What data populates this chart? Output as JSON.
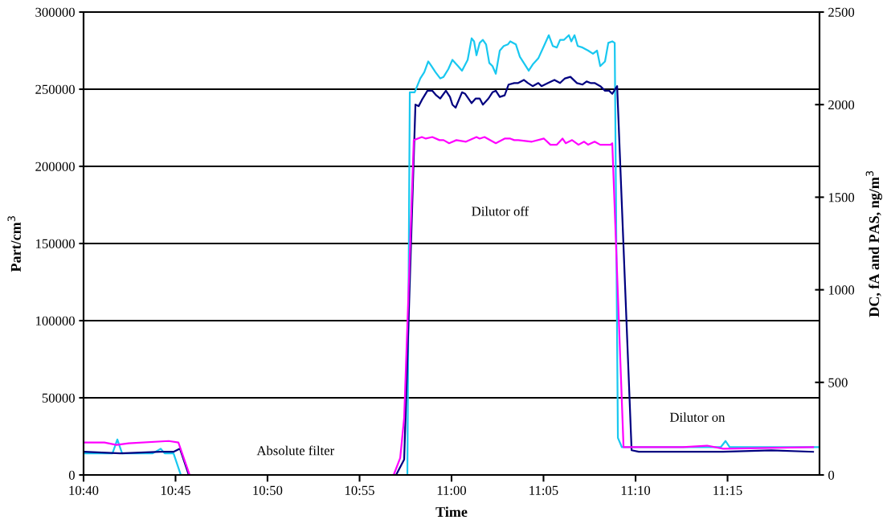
{
  "chart_data": {
    "type": "line",
    "xlabel": "Time",
    "ylabel": "Part/cm$^{3}$",
    "y2label": "DC, fA and PAS, ng/m$^{3}$",
    "xlim": [
      10.6667,
      11.3333
    ],
    "xticks": [
      {
        "value": 10.6667,
        "label": "10:40"
      },
      {
        "value": 10.75,
        "label": "10:45"
      },
      {
        "value": 10.8333,
        "label": "10:50"
      },
      {
        "value": 10.9167,
        "label": "10:55"
      },
      {
        "value": 11.0,
        "label": "11:00"
      },
      {
        "value": 11.0833,
        "label": "11:05"
      },
      {
        "value": 11.1667,
        "label": "11:10"
      },
      {
        "value": 11.25,
        "label": "11:15"
      }
    ],
    "ylim": [
      0,
      300000
    ],
    "yticks": [
      0,
      50000,
      100000,
      150000,
      200000,
      250000,
      300000
    ],
    "y2lim": [
      0,
      2500
    ],
    "y2ticks": [
      0,
      500,
      1000,
      1500,
      2000,
      2500
    ],
    "grid": "y",
    "marker": "none",
    "line_style": "solid",
    "annotations": [
      "Absolute filter",
      "Dilutor off",
      "Dilutor on"
    ],
    "series": [
      {
        "color": "#19c8f0",
        "x": [
          10.6667,
          10.6856,
          10.6929,
          10.6973,
          10.7016,
          10.7147,
          10.7293,
          10.7366,
          10.7402,
          10.7482,
          10.7548,
          10.96,
          10.9622,
          10.9666,
          10.9717,
          10.9753,
          10.9789,
          10.9818,
          10.9855,
          10.9898,
          10.9928,
          10.9971,
          11.0008,
          11.0059,
          11.0095,
          11.0146,
          11.0182,
          11.0204,
          11.0226,
          11.0255,
          11.0284,
          11.0313,
          11.0342,
          11.0371,
          11.0401,
          11.0437,
          11.0473,
          11.051,
          11.0532,
          11.0583,
          11.0619,
          11.0655,
          11.0699,
          11.0735,
          11.0786,
          11.0837,
          11.0881,
          11.0917,
          11.0954,
          11.0983,
          11.1019,
          11.1063,
          11.1085,
          11.1114,
          11.1143,
          11.1187,
          11.1238,
          11.1281,
          11.1318,
          11.1347,
          11.139,
          11.142,
          11.1456,
          11.1478,
          11.1507,
          11.1543,
          11.2096,
          11.2438,
          11.2482,
          11.2519,
          11.3333
        ],
        "values": [
          14000,
          14000,
          14000,
          23000,
          14000,
          14000,
          14000,
          17000,
          14000,
          14000,
          0,
          0,
          248000,
          248000,
          257000,
          261000,
          268000,
          265000,
          261000,
          257000,
          258000,
          263000,
          269000,
          265000,
          262000,
          269000,
          283000,
          281000,
          272000,
          280000,
          282000,
          279000,
          267000,
          265000,
          260000,
          275000,
          278000,
          279000,
          281000,
          279000,
          271000,
          267000,
          262000,
          266000,
          270000,
          278000,
          285000,
          278000,
          277000,
          282000,
          282000,
          285000,
          281000,
          285000,
          278000,
          277000,
          275000,
          273000,
          275000,
          265000,
          268000,
          280000,
          281000,
          280000,
          24000,
          18000,
          18000,
          18000,
          22000,
          18000,
          18000
        ]
      },
      {
        "color": "#000080",
        "x": [
          10.6667,
          10.7002,
          10.7366,
          10.7482,
          10.754,
          10.762,
          10.9498,
          10.9571,
          10.9673,
          10.9702,
          10.9731,
          10.9782,
          10.9826,
          10.9862,
          10.9898,
          10.9949,
          10.9986,
          11.0008,
          11.0037,
          11.0095,
          11.0124,
          11.0182,
          11.0219,
          11.0255,
          11.0284,
          11.0335,
          11.0371,
          11.0401,
          11.0437,
          11.0481,
          11.0517,
          11.0568,
          11.0604,
          11.0655,
          11.0692,
          11.0735,
          11.0786,
          11.0815,
          11.0874,
          11.0932,
          11.0983,
          11.1027,
          11.1077,
          11.1136,
          11.1187,
          11.1223,
          11.1259,
          11.1296,
          11.1347,
          11.139,
          11.1427,
          11.1456,
          11.15,
          11.1631,
          11.1696,
          11.2096,
          11.246,
          11.2897,
          11.3275
        ],
        "values": [
          15000,
          14000,
          15000,
          15000,
          17000,
          0,
          0,
          10000,
          240000,
          239000,
          243000,
          249000,
          249000,
          246000,
          244000,
          249000,
          245000,
          240000,
          238000,
          248000,
          247000,
          241000,
          244000,
          244000,
          240000,
          244000,
          248000,
          249000,
          245000,
          246000,
          253000,
          254000,
          254000,
          256000,
          254000,
          252000,
          254000,
          252000,
          254000,
          256000,
          254000,
          257000,
          258000,
          254000,
          253000,
          255000,
          254000,
          254000,
          252000,
          249000,
          249000,
          247000,
          252000,
          16000,
          15000,
          15000,
          15000,
          16000,
          15000
        ]
      },
      {
        "color": "#ff00ff",
        "x": [
          10.6667,
          10.6856,
          10.6965,
          10.7075,
          10.7438,
          10.7526,
          10.7628,
          10.9476,
          10.9535,
          10.9571,
          10.9658,
          10.9731,
          10.9767,
          10.9826,
          10.9891,
          10.9928,
          10.9978,
          11.0044,
          11.0131,
          11.0226,
          11.0255,
          11.0299,
          11.0401,
          11.0481,
          11.0532,
          11.0568,
          11.0604,
          11.0728,
          11.0837,
          11.0896,
          11.0954,
          11.1005,
          11.1034,
          11.1092,
          11.115,
          11.1201,
          11.1238,
          11.1296,
          11.1347,
          11.1441,
          11.1456,
          11.1558,
          11.2096,
          11.2315,
          11.246,
          11.3275
        ],
        "values": [
          21000,
          21000,
          19500,
          20500,
          22000,
          21000,
          0,
          0,
          11000,
          37000,
          217000,
          219000,
          218000,
          219000,
          217000,
          217000,
          215000,
          217000,
          216000,
          219000,
          218000,
          219000,
          215000,
          218000,
          218000,
          217000,
          217000,
          216000,
          218000,
          214000,
          214000,
          218000,
          215000,
          217000,
          214000,
          216000,
          214000,
          216000,
          214000,
          214000,
          215000,
          18000,
          18000,
          19000,
          17000,
          18000
        ]
      }
    ]
  }
}
